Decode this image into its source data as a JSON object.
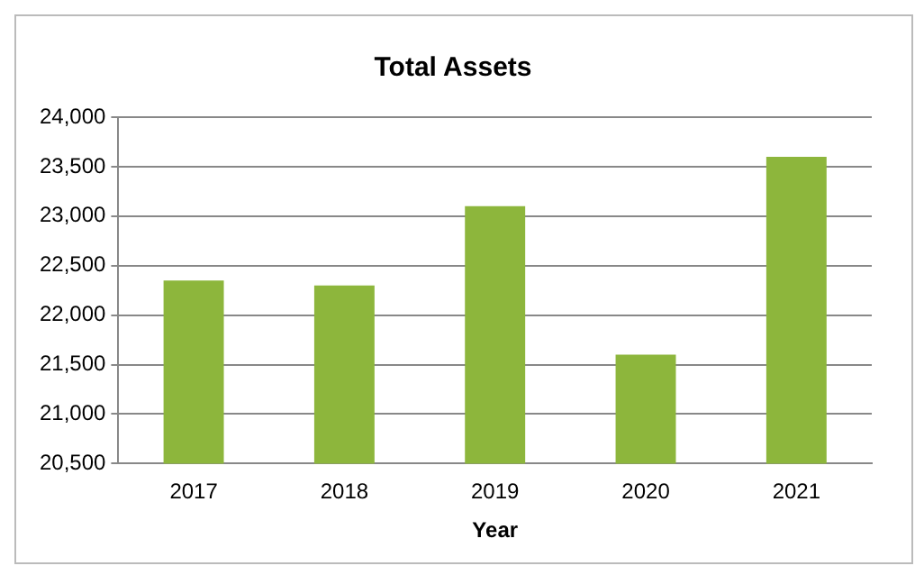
{
  "chart_data": {
    "type": "bar",
    "title": "Total Assets",
    "xlabel": "Year",
    "categories": [
      "2017",
      "2018",
      "2019",
      "2020",
      "2021"
    ],
    "values": [
      22350,
      22300,
      23100,
      21600,
      23600
    ],
    "color": "#8db63c",
    "ylim": [
      20500,
      24000
    ],
    "yticks": [
      {
        "value": 20500,
        "label": "20,500"
      },
      {
        "value": 21000,
        "label": "21,000"
      },
      {
        "value": 21500,
        "label": "21,500"
      },
      {
        "value": 22000,
        "label": "22,000"
      },
      {
        "value": 22500,
        "label": "22,500"
      },
      {
        "value": 23000,
        "label": "23,000"
      },
      {
        "value": 23500,
        "label": "23,500"
      },
      {
        "value": 24000,
        "label": "24,000"
      }
    ],
    "grid": "y",
    "legend": false
  }
}
